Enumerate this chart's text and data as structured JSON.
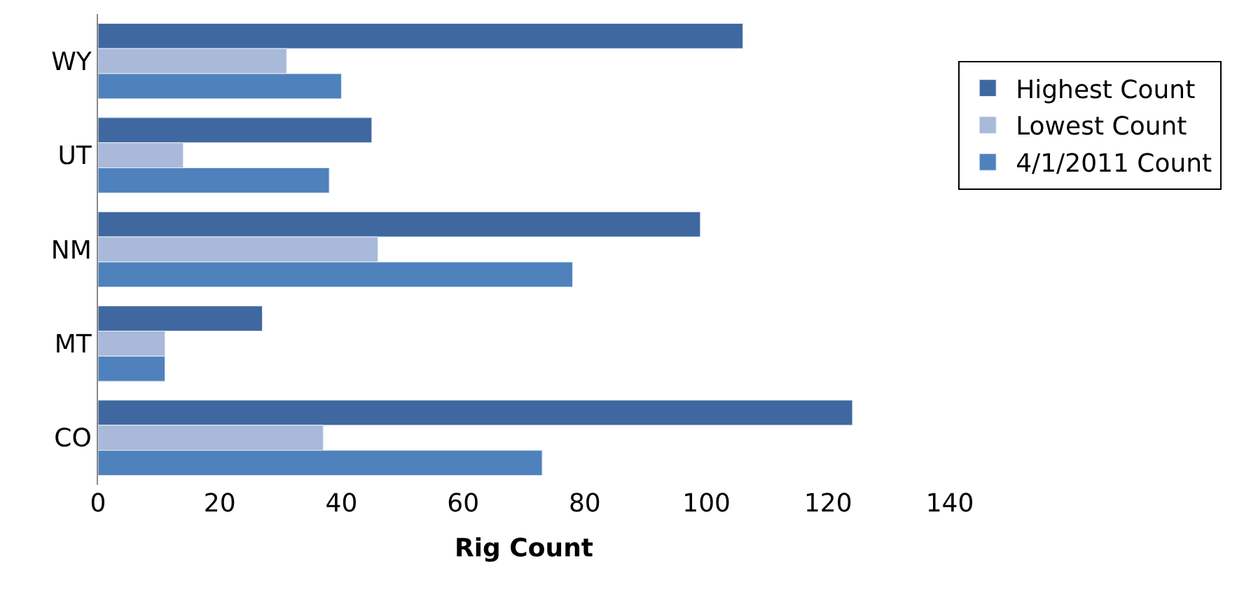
{
  "chart_data": {
    "type": "bar",
    "orientation": "horizontal",
    "xlabel": "Rig Count",
    "categories": [
      "WY",
      "UT",
      "NM",
      "MT",
      "CO"
    ],
    "series": [
      {
        "name": "Highest Count",
        "color": "#3f68a0",
        "values": [
          106,
          45,
          99,
          27,
          124
        ]
      },
      {
        "name": "Lowest Count",
        "color": "#a9b9d9",
        "values": [
          31,
          14,
          46,
          11,
          37
        ]
      },
      {
        "name": "4/1/2011 Count",
        "color": "#4f81bd",
        "values": [
          40,
          38,
          78,
          11,
          73
        ]
      }
    ],
    "xlim": [
      0,
      140
    ],
    "xticks": [
      0,
      20,
      40,
      60,
      80,
      100,
      120,
      140
    ],
    "grid": false,
    "legend": "right"
  }
}
